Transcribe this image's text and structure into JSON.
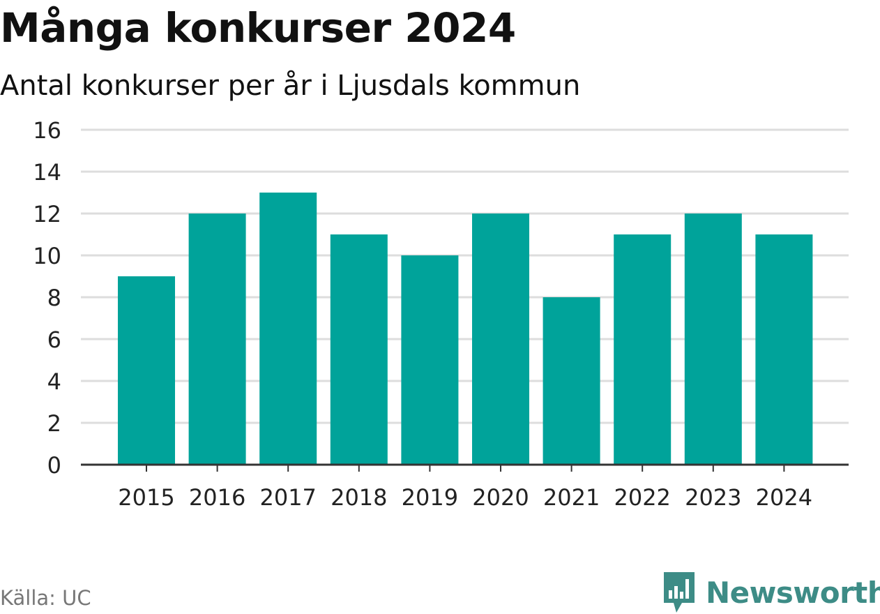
{
  "chart_data": {
    "type": "bar",
    "title": "Många konkurser 2024",
    "subtitle": "Antal konkurser per år i Ljusdals kommun",
    "categories": [
      "2015",
      "2016",
      "2017",
      "2018",
      "2019",
      "2020",
      "2021",
      "2022",
      "2023",
      "2024"
    ],
    "values": [
      9,
      12,
      13,
      11,
      10,
      12,
      8,
      11,
      12,
      11
    ],
    "xlabel": "",
    "ylabel": "",
    "ylim": [
      0,
      16
    ],
    "yticks": [
      0,
      2,
      4,
      6,
      8,
      10,
      12,
      14,
      16
    ],
    "grid": true,
    "legend": "none",
    "bar_color": "#00a39a"
  },
  "footer": {
    "source": "Källa: UC",
    "brand": "Newsworthy",
    "brand_color": "#3d8c86",
    "brand_icon": "newsworthy-logo-icon"
  }
}
